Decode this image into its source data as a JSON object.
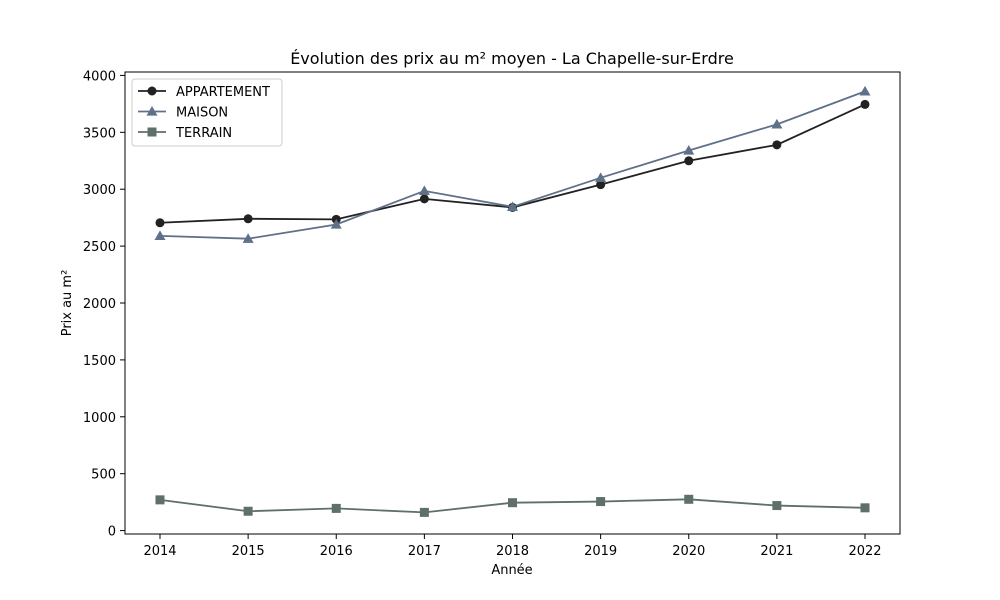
{
  "chart_data": {
    "type": "line",
    "title": "Évolution des prix au m² moyen - La Chapelle-sur-Erdre",
    "xlabel": "Année",
    "ylabel": "Prix au m²",
    "x": [
      "2014",
      "2015",
      "2016",
      "2017",
      "2018",
      "2019",
      "2020",
      "2021",
      "2022"
    ],
    "ylim": [
      -30,
      4030
    ],
    "yticks": [
      "0",
      "500",
      "1000",
      "1500",
      "2000",
      "2500",
      "3000",
      "3500",
      "4000"
    ],
    "grid": false,
    "legend_position": "top-left",
    "series": [
      {
        "name": "APPARTEMENT",
        "marker": "circle",
        "color": "#222222",
        "values": [
          2705,
          2740,
          2735,
          2915,
          2840,
          3040,
          3250,
          3390,
          3745
        ]
      },
      {
        "name": "MAISON",
        "marker": "triangle",
        "color": "#5f7189",
        "values": [
          2590,
          2565,
          2690,
          2985,
          2845,
          3100,
          3340,
          3570,
          3860
        ]
      },
      {
        "name": "TERRAIN",
        "marker": "square",
        "color": "#5f6f6b",
        "values": [
          270,
          170,
          195,
          160,
          245,
          255,
          275,
          220,
          200
        ]
      }
    ]
  }
}
